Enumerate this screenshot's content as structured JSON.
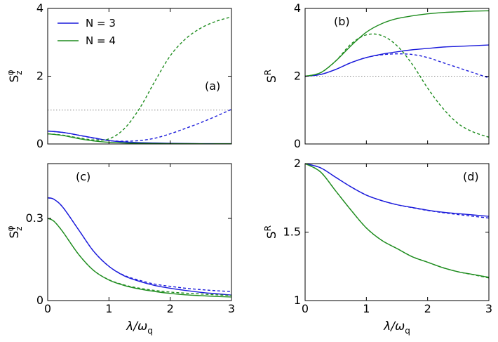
{
  "figure": {
    "xlabel_main": "λ/ω",
    "xlabel_sub": "q"
  },
  "legend": [
    {
      "label": "N = 3",
      "color": "#1a1adb"
    },
    {
      "label": "N = 4",
      "color": "#1e8c1e"
    }
  ],
  "chart_data": [
    {
      "id": "a",
      "type": "line",
      "panel_label": "(a)",
      "ylabel_main": "S",
      "ylabel_sub": "z",
      "ylabel_sup": "φ",
      "xlim": [
        0,
        3
      ],
      "ylim": [
        0,
        4
      ],
      "xticks": [
        0,
        1,
        2,
        3
      ],
      "yticks": [
        0,
        2,
        4
      ],
      "xtick_labels": [
        "",
        "",
        "",
        ""
      ],
      "ytick_labels": [
        "0",
        "2",
        "4"
      ],
      "reference_line": 1,
      "x": [
        0,
        0.25,
        0.5,
        0.75,
        1,
        1.25,
        1.5,
        1.75,
        2,
        2.25,
        2.5,
        2.75,
        3
      ],
      "series": [
        {
          "name": "N = 3 solid",
          "color": "#1a1adb",
          "dash": false,
          "values": [
            0.38,
            0.34,
            0.26,
            0.18,
            0.1,
            0.06,
            0.04,
            0.03,
            0.02,
            0.015,
            0.01,
            0.01,
            0.01
          ]
        },
        {
          "name": "N = 3 dashed",
          "color": "#1a1adb",
          "dash": true,
          "values": [
            0.38,
            0.34,
            0.26,
            0.17,
            0.1,
            0.08,
            0.1,
            0.17,
            0.3,
            0.46,
            0.63,
            0.82,
            1.02
          ]
        },
        {
          "name": "N = 4 solid",
          "color": "#1e8c1e",
          "dash": false,
          "values": [
            0.3,
            0.25,
            0.16,
            0.09,
            0.05,
            0.03,
            0.02,
            0.015,
            0.01,
            0.01,
            0.005,
            0.005,
            0.005
          ]
        },
        {
          "name": "N = 4 dashed",
          "color": "#1e8c1e",
          "dash": true,
          "values": [
            0.3,
            0.26,
            0.18,
            0.12,
            0.15,
            0.45,
            1.05,
            1.85,
            2.6,
            3.1,
            3.42,
            3.62,
            3.75
          ]
        }
      ]
    },
    {
      "id": "b",
      "type": "line",
      "panel_label": "(b)",
      "ylabel_main": "S",
      "ylabel_sub": "",
      "ylabel_sup": "R",
      "xlim": [
        0,
        3
      ],
      "ylim": [
        0,
        4
      ],
      "xticks": [
        0,
        1,
        2,
        3
      ],
      "yticks": [
        0,
        2,
        4
      ],
      "xtick_labels": [
        "",
        "",
        "",
        ""
      ],
      "ytick_labels": [
        "0",
        "2",
        "4"
      ],
      "reference_line": 2,
      "x": [
        0,
        0.25,
        0.5,
        0.75,
        1,
        1.25,
        1.5,
        1.75,
        2,
        2.25,
        2.5,
        2.75,
        3
      ],
      "series": [
        {
          "name": "N = 3 solid",
          "color": "#1a1adb",
          "dash": false,
          "values": [
            2.0,
            2.05,
            2.2,
            2.4,
            2.55,
            2.65,
            2.72,
            2.78,
            2.82,
            2.86,
            2.88,
            2.9,
            2.92
          ]
        },
        {
          "name": "N = 3 dashed",
          "color": "#1a1adb",
          "dash": true,
          "values": [
            2.0,
            2.05,
            2.2,
            2.4,
            2.55,
            2.63,
            2.66,
            2.64,
            2.55,
            2.4,
            2.25,
            2.1,
            1.95
          ]
        },
        {
          "name": "N = 4 solid",
          "color": "#1e8c1e",
          "dash": false,
          "values": [
            2.0,
            2.1,
            2.45,
            2.9,
            3.3,
            3.55,
            3.7,
            3.78,
            3.84,
            3.88,
            3.9,
            3.92,
            3.93
          ]
        },
        {
          "name": "N = 4 dashed",
          "color": "#1e8c1e",
          "dash": true,
          "values": [
            2.0,
            2.1,
            2.45,
            2.95,
            3.22,
            3.2,
            2.9,
            2.35,
            1.65,
            1.05,
            0.6,
            0.35,
            0.2
          ]
        }
      ]
    },
    {
      "id": "c",
      "type": "line",
      "panel_label": "(c)",
      "ylabel_main": "S",
      "ylabel_sub": "z",
      "ylabel_sup": "φ",
      "xlim": [
        0,
        3
      ],
      "ylim": [
        0,
        0.5
      ],
      "xticks": [
        0,
        1,
        2,
        3
      ],
      "yticks": [
        0,
        0.3
      ],
      "xtick_labels": [
        "0",
        "1",
        "2",
        "3"
      ],
      "ytick_labels": [
        "0",
        "0.3"
      ],
      "reference_line": null,
      "x": [
        0,
        0.1,
        0.25,
        0.5,
        0.75,
        1,
        1.25,
        1.5,
        1.75,
        2,
        2.25,
        2.5,
        2.75,
        3
      ],
      "series": [
        {
          "name": "N = 3 solid",
          "color": "#1a1adb",
          "dash": false,
          "values": [
            0.375,
            0.37,
            0.34,
            0.26,
            0.18,
            0.125,
            0.09,
            0.07,
            0.055,
            0.045,
            0.037,
            0.03,
            0.025,
            0.02
          ]
        },
        {
          "name": "N = 3 dashed",
          "color": "#1a1adb",
          "dash": true,
          "values": [
            0.375,
            0.37,
            0.34,
            0.26,
            0.18,
            0.125,
            0.092,
            0.074,
            0.06,
            0.052,
            0.045,
            0.04,
            0.036,
            0.033
          ]
        },
        {
          "name": "N = 4 solid",
          "color": "#1e8c1e",
          "dash": false,
          "values": [
            0.3,
            0.29,
            0.25,
            0.17,
            0.11,
            0.075,
            0.055,
            0.042,
            0.033,
            0.026,
            0.021,
            0.018,
            0.015,
            0.013
          ]
        },
        {
          "name": "N = 4 dashed",
          "color": "#1e8c1e",
          "dash": true,
          "values": [
            0.3,
            0.29,
            0.25,
            0.17,
            0.11,
            0.076,
            0.057,
            0.045,
            0.037,
            0.031,
            0.027,
            0.024,
            0.021,
            0.019
          ]
        }
      ]
    },
    {
      "id": "d",
      "type": "line",
      "panel_label": "(d)",
      "ylabel_main": "S",
      "ylabel_sub": "",
      "ylabel_sup": "R",
      "xlim": [
        0,
        3
      ],
      "ylim": [
        1,
        2
      ],
      "xticks": [
        0,
        1,
        2,
        3
      ],
      "yticks": [
        1,
        1.5,
        2
      ],
      "xtick_labels": [
        "0",
        "1",
        "2",
        "3"
      ],
      "ytick_labels": [
        "1",
        "1.5",
        "2"
      ],
      "reference_line": 2,
      "x": [
        0,
        0.25,
        0.5,
        0.75,
        1,
        1.25,
        1.5,
        1.75,
        2,
        2.25,
        2.5,
        2.75,
        3
      ],
      "series": [
        {
          "name": "N = 3 solid",
          "color": "#1a1adb",
          "dash": false,
          "values": [
            2.0,
            1.97,
            1.9,
            1.83,
            1.77,
            1.73,
            1.7,
            1.68,
            1.66,
            1.645,
            1.635,
            1.625,
            1.615
          ]
        },
        {
          "name": "N = 3 dashed",
          "color": "#1a1adb",
          "dash": true,
          "values": [
            2.0,
            1.97,
            1.9,
            1.83,
            1.77,
            1.73,
            1.7,
            1.678,
            1.658,
            1.642,
            1.628,
            1.615,
            1.603
          ]
        },
        {
          "name": "N = 4 solid",
          "color": "#1e8c1e",
          "dash": false,
          "values": [
            2.0,
            1.94,
            1.8,
            1.66,
            1.53,
            1.44,
            1.38,
            1.32,
            1.28,
            1.24,
            1.21,
            1.19,
            1.17
          ]
        },
        {
          "name": "N = 4 dashed",
          "color": "#1e8c1e",
          "dash": true,
          "values": [
            2.0,
            1.94,
            1.8,
            1.66,
            1.53,
            1.44,
            1.38,
            1.32,
            1.28,
            1.24,
            1.21,
            1.188,
            1.165
          ]
        }
      ]
    }
  ]
}
